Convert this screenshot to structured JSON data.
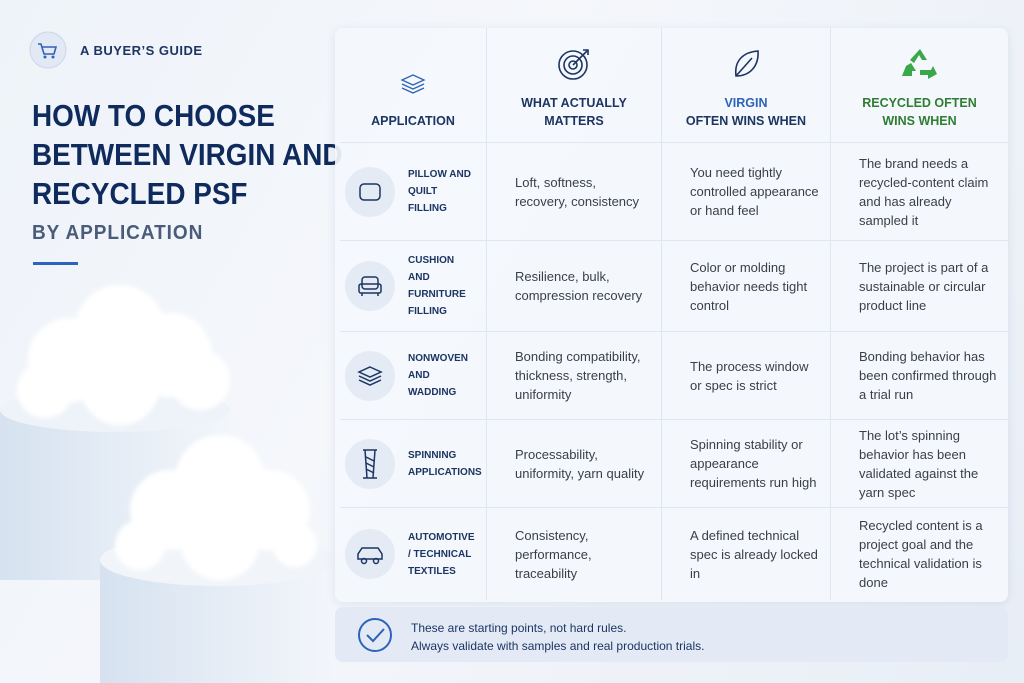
{
  "badge": "A BUYER’S GUIDE",
  "title": "HOW TO CHOOSE BETWEEN VIRGIN AND RECYCLED PSF",
  "subtitle": "BY APPLICATION",
  "table": {
    "headers": [
      {
        "label": "APPLICATION"
      },
      {
        "label": "WHAT ACTUALLY MATTERS"
      },
      {
        "label": "VIRGIN",
        "sub": "OFTEN WINS WHEN"
      },
      {
        "label": "RECYCLED OFTEN WINS WHEN"
      }
    ],
    "rows": [
      [
        "PILLOW AND QUILT FILLING",
        "Loft, softness, recovery, consistency",
        "You need tightly controlled appearance or hand feel",
        "The brand needs a recycled-content claim and has already sampled it"
      ],
      [
        "CUSHION AND FURNITURE FILLING",
        "Resilience, bulk, compression recovery",
        "Color or molding behavior needs tight control",
        "The project is part of a sustainable or circular product line"
      ],
      [
        "NONWOVEN AND WADDING",
        "Bonding compatibility, thickness, strength, uniformity",
        "The process window or spec is strict",
        "Bonding behavior has been confirmed through a trial run"
      ],
      [
        "SPINNING APPLICATIONS",
        "Processability, uniformity, yarn quality",
        "Spinning stability or appearance requirements run high",
        "The lot’s spinning behavior has been validated against the yarn spec"
      ],
      [
        "AUTOMOTIVE / TECHNICAL TEXTILES",
        "Consistency, performance, traceability",
        "A defined technical spec is already locked in",
        "Recycled content is a project goal and the technical validation is done"
      ]
    ]
  },
  "note": {
    "line1": "These are starting points, not hard rules.",
    "line2": "Always validate with samples and real production trials."
  }
}
